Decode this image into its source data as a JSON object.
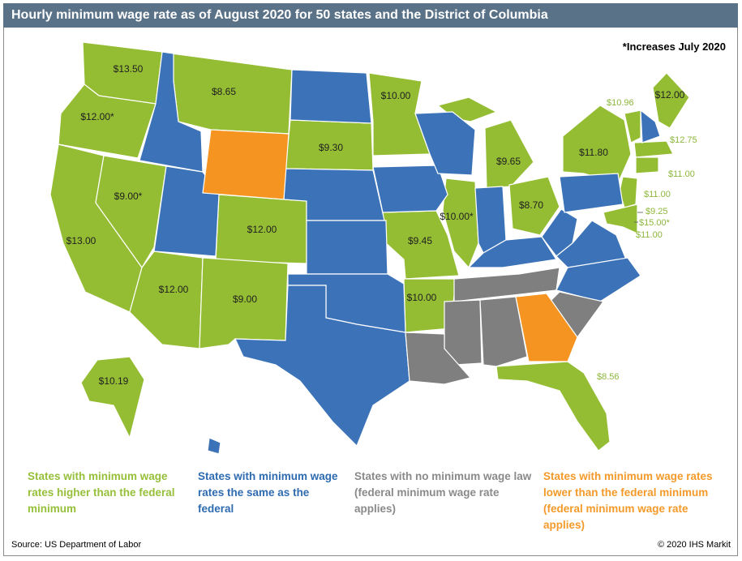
{
  "title": "Hourly minimum wage rate as of August 2020 for 50 states and the District of Columbia",
  "note": "*Increases July 2020",
  "colors": {
    "higher": "#94bd34",
    "same": "#3c73b8",
    "none": "#7f7f7f",
    "lower": "#f59420",
    "title_bg": "#5a7288"
  },
  "labels": {
    "wa": "$13.50",
    "or": "$12.00*",
    "ca": "$13.00",
    "nv": "$9.00*",
    "az": "$12.00",
    "mt": "$8.65",
    "co": "$12.00",
    "nm": "$9.00",
    "sd": "$9.30",
    "mn": "$10.00",
    "mo": "$9.45",
    "ar": "$10.00",
    "il": "$10.00*",
    "mi": "$9.65",
    "oh": "$8.70",
    "ny": "$11.80",
    "vt": "$10.96",
    "me": "$12.00",
    "ma": "$12.75",
    "ri": "$11.00",
    "nj": "$11.00",
    "de": "$9.25",
    "dc": "$15.00*",
    "md": "$11.00",
    "fl": "$8.56",
    "ak": "$10.19"
  },
  "legend": {
    "higher": "States with minimum wage rates higher than the federal minimum",
    "same": "States with minimum wage rates the same as the federal",
    "none": "States with no minimum wage law (federal minimum wage rate applies)",
    "lower": "States with minimum wage rates lower than the federal minimum (federal minimum wage rate applies)"
  },
  "source": "Source: US Department of Labor",
  "copyright": "© 2020 IHS Markit"
}
